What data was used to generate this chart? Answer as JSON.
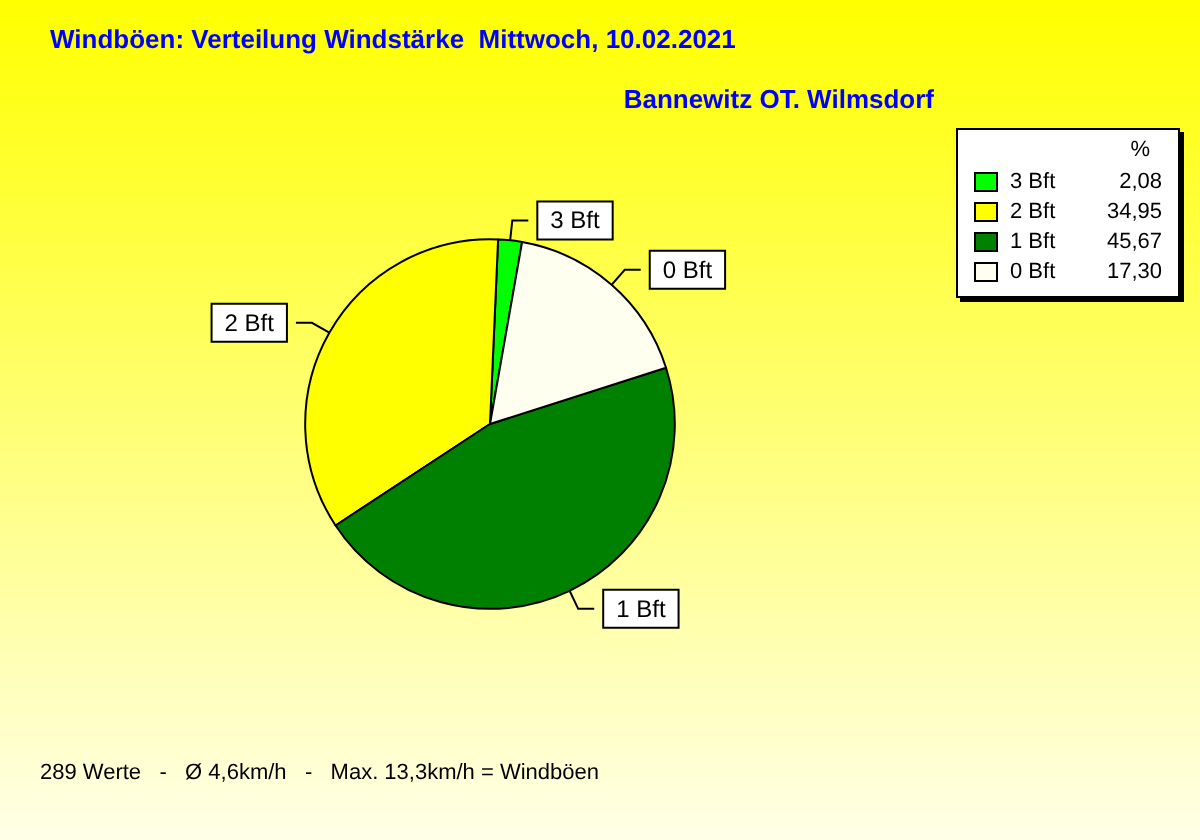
{
  "chart_data": {
    "type": "pie",
    "title": "Windböen: Verteilung Windstärke  Mittwoch, 10.02.2021",
    "subtitle": "Bannewitz OT. Wilmsdorf",
    "categories": [
      "3 Bft",
      "2 Bft",
      "1 Bft",
      "0 Bft"
    ],
    "values": [
      2.08,
      34.95,
      45.67,
      17.3
    ],
    "colors": [
      "#00ff00",
      "#ffff00",
      "#008000",
      "#fffff0"
    ],
    "value_labels": [
      "2,08",
      "34,95",
      "45,67",
      "17,30"
    ],
    "legend": "top right",
    "legend_title": "%",
    "annotations": [
      "289 Werte   -   Ø 4,6km/h   -   Max. 13,3km/h = Windböen"
    ]
  }
}
